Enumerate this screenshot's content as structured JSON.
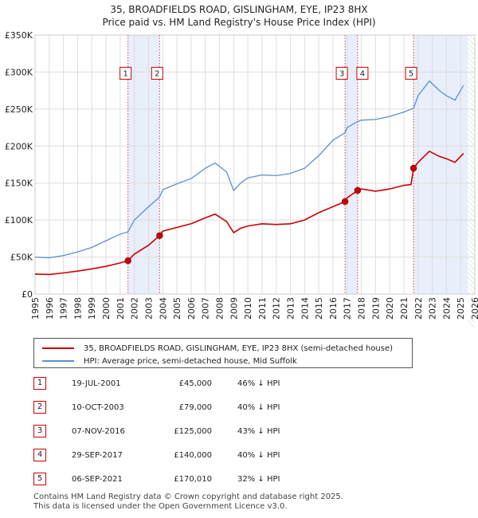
{
  "title": "35, BROADFIELDS ROAD, GISLINGHAM, EYE, IP23 8HX",
  "subtitle": "Price paid vs. HM Land Registry's House Price Index (HPI)",
  "colors": {
    "property": "#cc0000",
    "hpi": "#5b8fd0",
    "shade": "#e8eefa"
  },
  "legend": {
    "property_label": "35, BROADFIELDS ROAD, GISLINGHAM, EYE, IP23 8HX (semi-detached house)",
    "hpi_label": "HPI: Average price, semi-detached house, Mid Suffolk"
  },
  "sales": [
    {
      "num": "1",
      "date": "19-JUL-2001",
      "price": "£45,000",
      "hpi": "46% ↓ HPI"
    },
    {
      "num": "2",
      "date": "10-OCT-2003",
      "price": "£79,000",
      "hpi": "40% ↓ HPI"
    },
    {
      "num": "3",
      "date": "07-NOV-2016",
      "price": "£125,000",
      "hpi": "43% ↓ HPI"
    },
    {
      "num": "4",
      "date": "29-SEP-2017",
      "price": "£140,000",
      "hpi": "40% ↓ HPI"
    },
    {
      "num": "5",
      "date": "06-SEP-2021",
      "price": "£170,010",
      "hpi": "32% ↓ HPI"
    }
  ],
  "footer": {
    "line1": "Contains HM Land Registry data © Crown copyright and database right 2025.",
    "line2": "This data is licensed under the Open Government Licence v3.0."
  },
  "chart_data": {
    "type": "line",
    "title": "35, BROADFIELDS ROAD, GISLINGHAM, EYE, IP23 8HX",
    "subtitle": "Price paid vs. HM Land Registry's House Price Index (HPI)",
    "xlim": [
      1995,
      2026
    ],
    "ylim": [
      0,
      350000
    ],
    "x_ticks": [
      "1995",
      "1996",
      "1997",
      "1998",
      "1999",
      "2000",
      "2001",
      "2002",
      "2003",
      "2004",
      "2005",
      "2006",
      "2007",
      "2008",
      "2009",
      "2010",
      "2011",
      "2012",
      "2013",
      "2014",
      "2015",
      "2016",
      "2017",
      "2018",
      "2019",
      "2020",
      "2021",
      "2022",
      "2023",
      "2024",
      "2025",
      "2026"
    ],
    "y_ticks": [
      {
        "value": 0,
        "label": "£0"
      },
      {
        "value": 50000,
        "label": "£50K"
      },
      {
        "value": 100000,
        "label": "£100K"
      },
      {
        "value": 150000,
        "label": "£150K"
      },
      {
        "value": 200000,
        "label": "£200K"
      },
      {
        "value": 250000,
        "label": "£250K"
      },
      {
        "value": 300000,
        "label": "£300K"
      },
      {
        "value": 350000,
        "label": "£350K"
      }
    ],
    "grid": true,
    "shaded_ranges": [
      [
        2001.55,
        2003.78
      ],
      [
        2016.85,
        2017.74
      ],
      [
        2021.68,
        2025.5
      ]
    ],
    "sale_markers": [
      {
        "label": "1",
        "x": 2001.55,
        "y": 45000
      },
      {
        "label": "2",
        "x": 2003.78,
        "y": 79000
      },
      {
        "label": "3",
        "x": 2016.85,
        "y": 125000
      },
      {
        "label": "4",
        "x": 2017.74,
        "y": 140000
      },
      {
        "label": "5",
        "x": 2021.68,
        "y": 170010
      }
    ],
    "series": [
      {
        "name": "35, BROADFIELDS ROAD, GISLINGHAM, EYE, IP23 8HX (semi-detached house)",
        "color": "#cc0000",
        "points": [
          [
            1995,
            27000
          ],
          [
            1996,
            26500
          ],
          [
            1997,
            28500
          ],
          [
            1998,
            31000
          ],
          [
            1999,
            34000
          ],
          [
            2000,
            37500
          ],
          [
            2001,
            42000
          ],
          [
            2001.55,
            45000
          ],
          [
            2002,
            54000
          ],
          [
            2003,
            66000
          ],
          [
            2003.78,
            79000
          ],
          [
            2004,
            85000
          ],
          [
            2005,
            90000
          ],
          [
            2006,
            95000
          ],
          [
            2007,
            103000
          ],
          [
            2007.7,
            108000
          ],
          [
            2008.5,
            98000
          ],
          [
            2009,
            83000
          ],
          [
            2009.5,
            89000
          ],
          [
            2010,
            92000
          ],
          [
            2011,
            95000
          ],
          [
            2012,
            94000
          ],
          [
            2013,
            95000
          ],
          [
            2014,
            100000
          ],
          [
            2015,
            110000
          ],
          [
            2016,
            118000
          ],
          [
            2016.85,
            125000
          ],
          [
            2017,
            130000
          ],
          [
            2017.74,
            140000
          ],
          [
            2018,
            142000
          ],
          [
            2019,
            139000
          ],
          [
            2020,
            142000
          ],
          [
            2021,
            147000
          ],
          [
            2021.5,
            148000
          ],
          [
            2021.68,
            170010
          ],
          [
            2022,
            178000
          ],
          [
            2022.8,
            193000
          ],
          [
            2023.5,
            186000
          ],
          [
            2024,
            183000
          ],
          [
            2024.6,
            178000
          ],
          [
            2025.2,
            190000
          ]
        ]
      },
      {
        "name": "HPI: Average price, semi-detached house, Mid Suffolk",
        "color": "#5b8fd0",
        "points": [
          [
            1995,
            50000
          ],
          [
            1996,
            49000
          ],
          [
            1997,
            52000
          ],
          [
            1998,
            57000
          ],
          [
            1999,
            63000
          ],
          [
            2000,
            72000
          ],
          [
            2001,
            81000
          ],
          [
            2001.55,
            84000
          ],
          [
            2002,
            100000
          ],
          [
            2003,
            118000
          ],
          [
            2003.78,
            131000
          ],
          [
            2004,
            141000
          ],
          [
            2005,
            149000
          ],
          [
            2006,
            156000
          ],
          [
            2007,
            170000
          ],
          [
            2007.7,
            177000
          ],
          [
            2008.5,
            165000
          ],
          [
            2009,
            140000
          ],
          [
            2009.5,
            150000
          ],
          [
            2010,
            157000
          ],
          [
            2011,
            161000
          ],
          [
            2012,
            160000
          ],
          [
            2013,
            163000
          ],
          [
            2014,
            170000
          ],
          [
            2015,
            187000
          ],
          [
            2016,
            208000
          ],
          [
            2016.85,
            218000
          ],
          [
            2017,
            225000
          ],
          [
            2017.74,
            233000
          ],
          [
            2018,
            235000
          ],
          [
            2019,
            236000
          ],
          [
            2020,
            240000
          ],
          [
            2021,
            246000
          ],
          [
            2021.68,
            251000
          ],
          [
            2022,
            268000
          ],
          [
            2022.8,
            288000
          ],
          [
            2023.5,
            275000
          ],
          [
            2024,
            268000
          ],
          [
            2024.6,
            262000
          ],
          [
            2025.2,
            282000
          ]
        ]
      }
    ]
  }
}
